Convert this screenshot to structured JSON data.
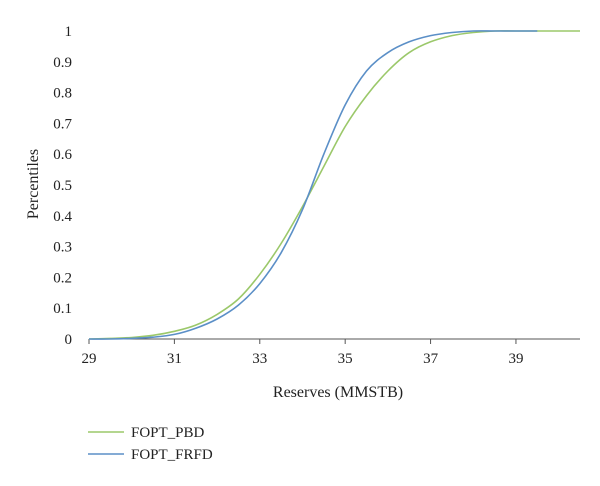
{
  "chart_data": {
    "type": "line",
    "title": "",
    "xlabel": "Reserves (MMSTB)",
    "ylabel": "Percentiles",
    "xlim": [
      29,
      40.5
    ],
    "ylim": [
      0,
      1
    ],
    "x_ticks": [
      "29",
      "31",
      "33",
      "35",
      "37",
      "39"
    ],
    "y_ticks": [
      "0",
      "0.1",
      "0.2",
      "0.3",
      "0.4",
      "0.5",
      "0.6",
      "0.7",
      "0.8",
      "0.9",
      "1"
    ],
    "grid": false,
    "legend_position": "bottom-left",
    "series": [
      {
        "name": "FOPT_PBD",
        "color": "#9bc86a",
        "points": [
          [
            29.0,
            0.0
          ],
          [
            29.5,
            0.002
          ],
          [
            30.0,
            0.005
          ],
          [
            30.5,
            0.012
          ],
          [
            31.0,
            0.025
          ],
          [
            31.5,
            0.045
          ],
          [
            32.0,
            0.08
          ],
          [
            32.5,
            0.13
          ],
          [
            33.0,
            0.21
          ],
          [
            33.5,
            0.31
          ],
          [
            34.0,
            0.43
          ],
          [
            34.5,
            0.56
          ],
          [
            35.0,
            0.69
          ],
          [
            35.5,
            0.79
          ],
          [
            36.0,
            0.87
          ],
          [
            36.5,
            0.93
          ],
          [
            37.0,
            0.965
          ],
          [
            37.5,
            0.985
          ],
          [
            38.0,
            0.995
          ],
          [
            38.5,
            1.0
          ],
          [
            39.0,
            1.0
          ],
          [
            40.5,
            1.0
          ]
        ]
      },
      {
        "name": "FOPT_FRFD",
        "color": "#5b8fc7",
        "points": [
          [
            29.0,
            0.0
          ],
          [
            29.5,
            0.0
          ],
          [
            30.0,
            0.002
          ],
          [
            30.5,
            0.006
          ],
          [
            31.0,
            0.015
          ],
          [
            31.5,
            0.035
          ],
          [
            32.0,
            0.065
          ],
          [
            32.5,
            0.11
          ],
          [
            33.0,
            0.18
          ],
          [
            33.5,
            0.28
          ],
          [
            34.0,
            0.42
          ],
          [
            34.5,
            0.6
          ],
          [
            35.0,
            0.76
          ],
          [
            35.5,
            0.87
          ],
          [
            36.0,
            0.93
          ],
          [
            36.5,
            0.965
          ],
          [
            37.0,
            0.985
          ],
          [
            37.5,
            0.995
          ],
          [
            38.0,
            1.0
          ],
          [
            38.5,
            1.0
          ],
          [
            39.0,
            1.0
          ],
          [
            39.5,
            1.0
          ]
        ]
      }
    ]
  }
}
